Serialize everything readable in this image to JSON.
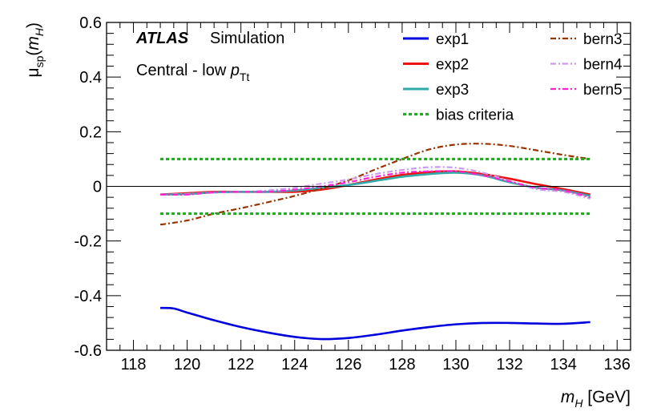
{
  "chart_data": {
    "type": "line",
    "title": "",
    "annotation": {
      "experiment": "ATLAS",
      "label": "Simulation",
      "region_text": "Central - low ",
      "region_symbol": "p",
      "region_subscript": "Tt"
    },
    "xlabel": {
      "symbol": "m",
      "subscript": "H",
      "unit": "[GeV]"
    },
    "ylabel": {
      "symbol": "μ",
      "subscript": "sp",
      "arg_open": "(",
      "arg_symbol": "m",
      "arg_subscript": "H",
      "arg_close": ")"
    },
    "xlim": [
      117.0,
      136.5
    ],
    "ylim": [
      -0.6,
      0.6
    ],
    "x_ticks": [
      118,
      120,
      122,
      124,
      126,
      128,
      130,
      132,
      134,
      136
    ],
    "x_tick_labels": [
      "118",
      "120",
      "122",
      "124",
      "126",
      "128",
      "130",
      "132",
      "134",
      "136"
    ],
    "y_ticks": [
      -0.6,
      -0.4,
      -0.2,
      0,
      0.2,
      0.4,
      0.6
    ],
    "y_tick_labels": [
      "-0.6",
      "-0.4",
      "-0.2",
      "0",
      "0.2",
      "0.4",
      "0.6"
    ],
    "zero_line": 0,
    "series": [
      {
        "name": "exp1",
        "color": "#0000dd",
        "style": "solid",
        "x": [
          119,
          119.5,
          120,
          121,
          122,
          123,
          124,
          125,
          126,
          127,
          128,
          129,
          130,
          131,
          132,
          133,
          134,
          135
        ],
        "y": [
          -0.445,
          -0.447,
          -0.462,
          -0.49,
          -0.515,
          -0.535,
          -0.551,
          -0.559,
          -0.555,
          -0.543,
          -0.528,
          -0.515,
          -0.505,
          -0.5,
          -0.5,
          -0.502,
          -0.503,
          -0.497
        ]
      },
      {
        "name": "exp2",
        "color": "#ee1111",
        "style": "solid",
        "x": [
          119,
          120,
          121,
          122,
          123,
          124,
          125,
          126,
          127,
          128,
          129,
          130,
          131,
          132,
          133,
          134,
          135
        ],
        "y": [
          -0.03,
          -0.025,
          -0.02,
          -0.02,
          -0.02,
          -0.02,
          -0.012,
          0.005,
          0.025,
          0.042,
          0.052,
          0.055,
          0.045,
          0.028,
          0.008,
          -0.01,
          -0.03
        ]
      },
      {
        "name": "exp3",
        "color": "#33aaaa",
        "style": "solid",
        "x": [
          119,
          120,
          121,
          122,
          123,
          124,
          125,
          126,
          127,
          128,
          129,
          130,
          131,
          132,
          133,
          134,
          135
        ],
        "y": [
          -0.03,
          -0.028,
          -0.022,
          -0.02,
          -0.02,
          -0.015,
          -0.005,
          0.005,
          0.02,
          0.035,
          0.045,
          0.05,
          0.04,
          0.015,
          -0.005,
          -0.015,
          -0.035
        ]
      },
      {
        "name": "bern3",
        "color": "#993300",
        "style": "dashdot",
        "x": [
          119,
          120,
          121,
          122,
          123,
          124,
          125,
          126,
          127,
          128,
          129,
          130,
          131,
          132,
          133,
          134,
          135
        ],
        "y": [
          -0.14,
          -0.125,
          -0.1,
          -0.08,
          -0.058,
          -0.035,
          -0.008,
          0.022,
          0.062,
          0.1,
          0.135,
          0.153,
          0.156,
          0.148,
          0.132,
          0.115,
          0.1
        ]
      },
      {
        "name": "bern4",
        "color": "#cc99ee",
        "style": "dashdot",
        "x": [
          119,
          120,
          121,
          122,
          123,
          124,
          125,
          126,
          127,
          128,
          129,
          130,
          131,
          132,
          133,
          134,
          135
        ],
        "y": [
          -0.03,
          -0.028,
          -0.022,
          -0.02,
          -0.015,
          -0.005,
          0.01,
          0.025,
          0.045,
          0.06,
          0.07,
          0.068,
          0.05,
          0.02,
          -0.01,
          -0.02,
          -0.045
        ]
      },
      {
        "name": "bern5",
        "color": "#ff22cc",
        "style": "dashdot",
        "x": [
          119,
          120,
          121,
          122,
          123,
          124,
          125,
          126,
          127,
          128,
          129,
          130,
          131,
          132,
          133,
          134,
          135
        ],
        "y": [
          -0.03,
          -0.03,
          -0.022,
          -0.02,
          -0.02,
          -0.012,
          0.0,
          0.015,
          0.035,
          0.05,
          0.055,
          0.055,
          0.04,
          0.018,
          -0.005,
          -0.015,
          -0.04
        ]
      },
      {
        "name": "bias criteria",
        "color": "#22aa22",
        "style": "dotted",
        "bands": [
          0.1,
          -0.1
        ],
        "x_range": [
          119,
          135
        ]
      }
    ],
    "legend": {
      "placement": "top-right",
      "columns": [
        [
          "exp1",
          "exp2",
          "exp3",
          "bias criteria"
        ],
        [
          "bern3",
          "bern4",
          "bern5"
        ]
      ]
    }
  }
}
